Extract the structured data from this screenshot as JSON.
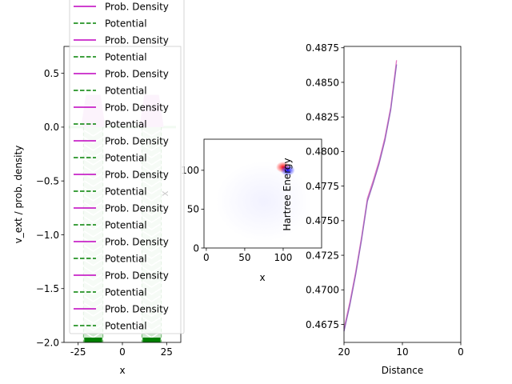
{
  "chart_data": [
    {
      "type": "line",
      "xlabel": "x",
      "ylabel": "v_ext / prob. density",
      "xlim": [
        -33,
        33
      ],
      "ylim": [
        -2.0,
        0.75
      ],
      "xticks": [
        -25,
        0,
        25
      ],
      "yticks": [
        0.5,
        0.0,
        -0.5,
        -1.0,
        -1.5,
        -2.0
      ],
      "ytick_labels": [
        "0.5",
        "0.0",
        "−0.5",
        "−1.0",
        "−1.5",
        "−2.0"
      ],
      "wells": [
        {
          "center": -16.5,
          "half_width": 5.5,
          "min": -2.0,
          "density_peak": 0.3
        },
        {
          "center": 16.5,
          "half_width": 5.5,
          "min": -2.0,
          "density_peak": 0.3
        }
      ],
      "legend": {
        "location": "upper-center",
        "entries": [
          {
            "label": "Prob. Density",
            "style": "solid",
            "color": "#bf00bf"
          },
          {
            "label": "Potential",
            "style": "dashed",
            "color": "#008000"
          },
          {
            "label": "Prob. Density",
            "style": "solid",
            "color": "#bf00bf"
          },
          {
            "label": "Potential",
            "style": "dashed",
            "color": "#008000"
          },
          {
            "label": "Prob. Density",
            "style": "solid",
            "color": "#bf00bf"
          },
          {
            "label": "Potential",
            "style": "dashed",
            "color": "#008000"
          },
          {
            "label": "Prob. Density",
            "style": "solid",
            "color": "#bf00bf"
          },
          {
            "label": "Potential",
            "style": "dashed",
            "color": "#008000"
          },
          {
            "label": "Prob. Density",
            "style": "solid",
            "color": "#bf00bf"
          },
          {
            "label": "Potential",
            "style": "dashed",
            "color": "#008000"
          },
          {
            "label": "Prob. Density",
            "style": "solid",
            "color": "#bf00bf"
          },
          {
            "label": "Potential",
            "style": "dashed",
            "color": "#008000"
          },
          {
            "label": "Prob. Density",
            "style": "solid",
            "color": "#bf00bf"
          },
          {
            "label": "Potential",
            "style": "dashed",
            "color": "#008000"
          },
          {
            "label": "Prob. Density",
            "style": "solid",
            "color": "#bf00bf"
          },
          {
            "label": "Potential",
            "style": "dashed",
            "color": "#008000"
          },
          {
            "label": "Prob. Density",
            "style": "solid",
            "color": "#bf00bf"
          },
          {
            "label": "Potential",
            "style": "dashed",
            "color": "#008000"
          },
          {
            "label": "Prob. Density",
            "style": "solid",
            "color": "#bf00bf"
          },
          {
            "label": "Potential",
            "style": "dashed",
            "color": "#008000"
          }
        ]
      }
    },
    {
      "type": "heatmap",
      "xlabel": "x",
      "ylabel": "x",
      "xlim": [
        -3,
        150
      ],
      "ylim": [
        0,
        140
      ],
      "xticks": [
        0,
        50,
        100
      ],
      "yticks": [
        0,
        50,
        100
      ],
      "features": [
        {
          "x": 100,
          "y": 104,
          "sign": "positive",
          "color": "#ff0000"
        },
        {
          "x": 106,
          "y": 100,
          "sign": "negative",
          "color": "#0000ff"
        }
      ]
    },
    {
      "type": "line",
      "xlabel": "Distance",
      "ylabel": "Hartree Energy",
      "xlim": [
        20,
        0
      ],
      "ylim": [
        0.4662,
        0.4876
      ],
      "xticks": [
        20,
        10,
        0
      ],
      "yticks": [
        0.4675,
        0.47,
        0.4725,
        0.475,
        0.4775,
        0.48,
        0.4825,
        0.485,
        0.4875
      ],
      "ytick_labels": [
        "0.4675",
        "0.4700",
        "0.4725",
        "0.4750",
        "0.4775",
        "0.4800",
        "0.4825",
        "0.4850",
        "0.4875"
      ],
      "series": [
        {
          "color": "#e377c2",
          "x": [
            20,
            19,
            18,
            17,
            16,
            15,
            14,
            13,
            12,
            11
          ],
          "values": [
            0.4672,
            0.4691,
            0.4713,
            0.4738,
            0.4766,
            0.4779,
            0.4793,
            0.481,
            0.4832,
            0.4866
          ]
        },
        {
          "color": "#9467bd",
          "x": [
            20,
            19,
            18,
            17,
            16,
            15,
            14,
            13,
            12,
            11
          ],
          "values": [
            0.467,
            0.4689,
            0.4711,
            0.4736,
            0.4764,
            0.4777,
            0.4791,
            0.4808,
            0.483,
            0.4863
          ]
        }
      ]
    }
  ]
}
